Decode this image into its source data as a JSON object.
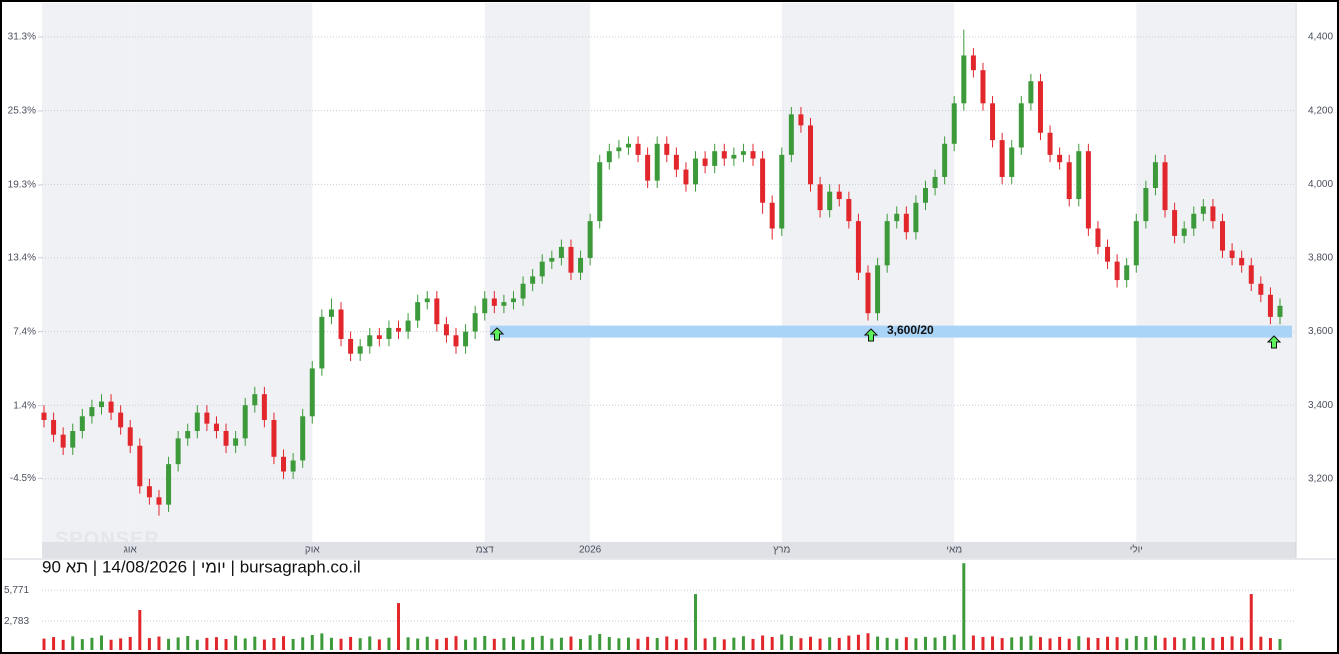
{
  "chart_data": {
    "type": "candlestick",
    "title": "יומי | 14/08/2026 | תא 90 | bursagraph.co.il",
    "watermark": "SPONSER",
    "up_color": "#3d9a3a",
    "down_color": "#e1262c",
    "grid": true,
    "categories": [
      null,
      null,
      null,
      null,
      null,
      null,
      null,
      null,
      null,
      "אוג",
      null,
      null,
      null,
      null,
      null,
      null,
      null,
      null,
      null,
      null,
      null,
      null,
      null,
      null,
      null,
      null,
      null,
      null,
      "אוק",
      null,
      null,
      null,
      null,
      null,
      null,
      null,
      null,
      null,
      null,
      null,
      null,
      null,
      null,
      null,
      null,
      null,
      "דצמ",
      null,
      null,
      null,
      null,
      null,
      null,
      null,
      null,
      null,
      null,
      "2026",
      null,
      null,
      null,
      null,
      null,
      null,
      null,
      null,
      null,
      null,
      null,
      null,
      null,
      null,
      null,
      null,
      null,
      null,
      null,
      "מרץ",
      null,
      null,
      null,
      null,
      null,
      null,
      null,
      null,
      null,
      null,
      null,
      null,
      null,
      null,
      null,
      null,
      null,
      "מאי",
      null,
      null,
      null,
      null,
      null,
      null,
      null,
      null,
      null,
      null,
      null,
      null,
      null,
      null,
      null,
      null,
      null,
      null,
      "יולי",
      null,
      null,
      null,
      null,
      null,
      null,
      null,
      null,
      null,
      null,
      null,
      null,
      null,
      null,
      null
    ],
    "open": [
      3380,
      3360,
      3320,
      3285,
      3330,
      3370,
      3395,
      3410,
      3380,
      3340,
      3290,
      3180,
      3150,
      3130,
      3240,
      3310,
      3330,
      3380,
      3350,
      3330,
      3290,
      3310,
      3400,
      3430,
      3360,
      3260,
      3220,
      3250,
      3370,
      3500,
      3640,
      3660,
      3580,
      3540,
      3560,
      3590,
      3580,
      3610,
      3600,
      3630,
      3680,
      3690,
      3620,
      3590,
      3560,
      3600,
      3650,
      3690,
      3670,
      3680,
      3690,
      3730,
      3750,
      3790,
      3800,
      3830,
      3760,
      3800,
      3900,
      4060,
      4090,
      4100,
      4110,
      4080,
      4010,
      4110,
      4080,
      4040,
      4000,
      4070,
      4050,
      4090,
      4070,
      4080,
      4090,
      4070,
      3950,
      3880,
      4080,
      4190,
      4160,
      4000,
      3930,
      3980,
      3960,
      3900,
      3760,
      3650,
      3780,
      3900,
      3920,
      3870,
      3950,
      3990,
      4020,
      4110,
      4220,
      4350,
      4310,
      4220,
      4120,
      4020,
      4100,
      4220,
      4280,
      4140,
      4080,
      4060,
      3960,
      4090,
      3880,
      3830,
      3790,
      3740,
      3780,
      3900,
      3990,
      4060,
      3930,
      3860,
      3880,
      3920,
      3940,
      3900,
      3820,
      3800,
      3780,
      3730,
      3700,
      3640
    ],
    "high": [
      3400,
      3380,
      3340,
      3350,
      3390,
      3415,
      3430,
      3430,
      3400,
      3360,
      3310,
      3200,
      3170,
      3260,
      3330,
      3350,
      3400,
      3400,
      3370,
      3350,
      3330,
      3420,
      3450,
      3450,
      3380,
      3280,
      3270,
      3390,
      3520,
      3660,
      3690,
      3680,
      3600,
      3580,
      3610,
      3610,
      3630,
      3630,
      3650,
      3700,
      3710,
      3710,
      3640,
      3610,
      3620,
      3670,
      3710,
      3710,
      3700,
      3710,
      3750,
      3770,
      3810,
      3820,
      3850,
      3850,
      3820,
      3920,
      4080,
      4110,
      4120,
      4130,
      4130,
      4100,
      4130,
      4130,
      4100,
      4060,
      4090,
      4090,
      4110,
      4110,
      4100,
      4110,
      4110,
      4090,
      3970,
      4100,
      4210,
      4210,
      4180,
      4020,
      4000,
      4000,
      3980,
      3920,
      3780,
      3800,
      3920,
      3940,
      3940,
      3970,
      4010,
      4040,
      4130,
      4240,
      4420,
      4370,
      4330,
      4240,
      4140,
      4120,
      4240,
      4300,
      4300,
      4160,
      4100,
      4080,
      4110,
      4110,
      3900,
      3850,
      3810,
      3800,
      3920,
      4010,
      4080,
      4080,
      3950,
      3900,
      3940,
      3960,
      3960,
      3920,
      3840,
      3820,
      3800,
      3750,
      3720,
      3690
    ],
    "low": [
      3340,
      3300,
      3265,
      3265,
      3310,
      3350,
      3375,
      3360,
      3320,
      3270,
      3160,
      3130,
      3100,
      3110,
      3220,
      3290,
      3310,
      3330,
      3310,
      3270,
      3270,
      3290,
      3380,
      3340,
      3240,
      3200,
      3200,
      3230,
      3350,
      3480,
      3620,
      3560,
      3520,
      3520,
      3540,
      3560,
      3560,
      3580,
      3580,
      3610,
      3660,
      3600,
      3570,
      3540,
      3540,
      3580,
      3630,
      3650,
      3650,
      3660,
      3670,
      3710,
      3730,
      3770,
      3780,
      3740,
      3740,
      3780,
      3880,
      4040,
      4070,
      4080,
      4060,
      3990,
      3990,
      4060,
      4020,
      3980,
      3980,
      4030,
      4030,
      4050,
      4050,
      4060,
      4050,
      3920,
      3850,
      3860,
      4060,
      4140,
      3980,
      3910,
      3910,
      3940,
      3880,
      3740,
      3630,
      3630,
      3760,
      3880,
      3850,
      3850,
      3930,
      3970,
      4000,
      4090,
      4200,
      4290,
      4200,
      4100,
      4000,
      4000,
      4080,
      4200,
      4120,
      4060,
      4040,
      3940,
      3940,
      3860,
      3810,
      3770,
      3720,
      3720,
      3760,
      3880,
      3970,
      3910,
      3840,
      3840,
      3860,
      3900,
      3880,
      3800,
      3780,
      3760,
      3710,
      3680,
      3620,
      3620
    ],
    "close": [
      3360,
      3320,
      3285,
      3330,
      3370,
      3395,
      3410,
      3380,
      3340,
      3290,
      3180,
      3150,
      3130,
      3240,
      3310,
      3330,
      3380,
      3350,
      3330,
      3290,
      3310,
      3400,
      3430,
      3360,
      3260,
      3220,
      3250,
      3370,
      3500,
      3640,
      3660,
      3580,
      3540,
      3560,
      3590,
      3580,
      3610,
      3600,
      3630,
      3680,
      3690,
      3620,
      3590,
      3560,
      3600,
      3650,
      3690,
      3670,
      3680,
      3690,
      3730,
      3750,
      3790,
      3800,
      3830,
      3760,
      3800,
      3900,
      4060,
      4090,
      4100,
      4110,
      4080,
      4010,
      4110,
      4080,
      4040,
      4000,
      4070,
      4050,
      4090,
      4070,
      4080,
      4090,
      4070,
      3950,
      3880,
      4080,
      4190,
      4160,
      4000,
      3930,
      3980,
      3960,
      3900,
      3760,
      3650,
      3780,
      3900,
      3920,
      3870,
      3950,
      3990,
      4020,
      4110,
      4220,
      4350,
      4310,
      4220,
      4120,
      4020,
      4100,
      4220,
      4280,
      4140,
      4080,
      4060,
      3960,
      4090,
      3880,
      3830,
      3790,
      3740,
      3780,
      3900,
      3990,
      4060,
      3930,
      3860,
      3880,
      3920,
      3940,
      3900,
      3820,
      3800,
      3780,
      3730,
      3700,
      3640,
      3670
    ],
    "ylim": [
      3034,
      4487
    ],
    "yticks": [
      {
        "value": 3200,
        "label": "3,200"
      },
      {
        "value": 3400,
        "label": "3,400"
      },
      {
        "value": 3600,
        "label": "3,600"
      },
      {
        "value": 3800,
        "label": "3,800"
      },
      {
        "value": 4000,
        "label": "4,000"
      },
      {
        "value": 4200,
        "label": "4,200"
      },
      {
        "value": 4400,
        "label": "4,400"
      }
    ],
    "y2lim": [
      -9.5,
      33.9
    ],
    "y2ticks": [
      {
        "value": -4.5,
        "label": "-4.5%"
      },
      {
        "value": 1.4,
        "label": "1.4%"
      },
      {
        "value": 7.4,
        "label": "7.4%"
      },
      {
        "value": 13.4,
        "label": "13.4%"
      },
      {
        "value": 19.3,
        "label": "19.3%"
      },
      {
        "value": 25.3,
        "label": "25.3%"
      },
      {
        "value": 31.3,
        "label": "31.3%"
      }
    ],
    "band": {
      "value": 3600,
      "label": "3,600/20",
      "color": "#a9d3f7"
    },
    "volume": {
      "values": [
        1100,
        1250,
        980,
        1320,
        1050,
        1180,
        1400,
        990,
        1120,
        1260,
        3860,
        1150,
        1300,
        1080,
        1210,
        1350,
        990,
        1170,
        1240,
        1060,
        1380,
        1120,
        1290,
        1010,
        1160,
        1330,
        1070,
        1220,
        1450,
        1600,
        1180,
        1090,
        1260,
        1140,
        1310,
        1020,
        1190,
        4530,
        1230,
        1110,
        1280,
        1050,
        1170,
        1340,
        1000,
        1210,
        1360,
        1080,
        1150,
        1290,
        1020,
        1240,
        1370,
        1110,
        1190,
        1300,
        1060,
        1420,
        1550,
        1250,
        1130,
        1200,
        1090,
        1270,
        1160,
        1310,
        1040,
        1180,
        5400,
        1120,
        1250,
        1030,
        1190,
        1330,
        1070,
        1400,
        1260,
        1500,
        1350,
        1140,
        1280,
        1100,
        1230,
        1160,
        1390,
        1470,
        1620,
        1300,
        1180,
        1090,
        1240,
        1130,
        1270,
        1200,
        1350,
        1480,
        8380,
        1400,
        1260,
        1310,
        1150,
        1220,
        1290,
        1380,
        1240,
        1120,
        1270,
        1090,
        1330,
        1200,
        1160,
        1280,
        1240,
        1110,
        1350,
        1260,
        1390,
        1180,
        1230,
        1140,
        1300,
        1210,
        1170,
        1260,
        1320,
        1190,
        5400,
        1280,
        1150,
        1060
      ],
      "ylim": [
        0,
        8400
      ],
      "yticks": [
        {
          "value": 2783,
          "label": "2,783"
        },
        {
          "value": 5771,
          "label": "5,771"
        }
      ]
    }
  }
}
